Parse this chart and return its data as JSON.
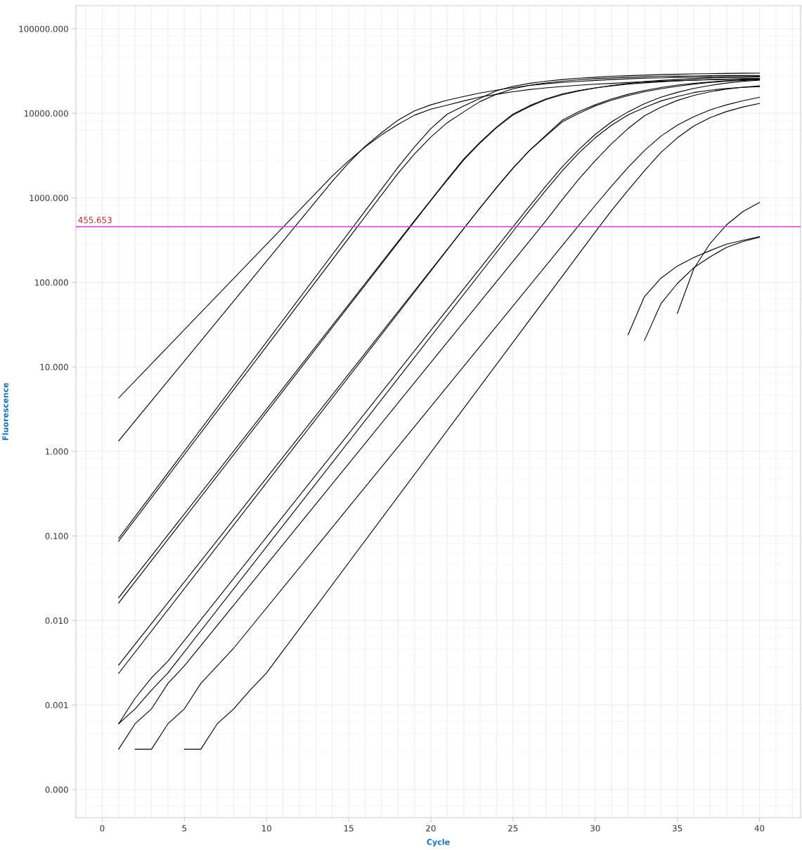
{
  "chart_data": {
    "type": "line",
    "xlabel": "Cycle",
    "ylabel": "Fluorescence",
    "log": "y",
    "grid": true,
    "line_style": "solid",
    "xlim": [
      -1.6,
      42.5
    ],
    "ylim": [
      4.65e-05,
      188000
    ],
    "xticks": [
      0,
      5,
      10,
      15,
      20,
      25,
      30,
      35,
      40
    ],
    "yticks": [
      {
        "value": 0.0001,
        "label": "0.000"
      },
      {
        "value": 0.001,
        "label": "0.001"
      },
      {
        "value": 0.01,
        "label": "0.010"
      },
      {
        "value": 0.1,
        "label": "0.100"
      },
      {
        "value": 1,
        "label": "1.000"
      },
      {
        "value": 10,
        "label": "10.000"
      },
      {
        "value": 100,
        "label": "100.000"
      },
      {
        "value": 1000,
        "label": "1000.000"
      },
      {
        "value": 10000,
        "label": "10000.000"
      },
      {
        "value": 100000,
        "label": "100000.000"
      }
    ],
    "ref_lines": [
      {
        "axis": "y",
        "value": 455.653,
        "label": "455.653",
        "color": "#cc44cc"
      }
    ],
    "series": [
      {
        "color": "#000000",
        "x": [
          1,
          14,
          15,
          16,
          17,
          18,
          19,
          20,
          21,
          22,
          23,
          24,
          25,
          26,
          27,
          28,
          29,
          30,
          31,
          32,
          33,
          34,
          35,
          36,
          37,
          38,
          39,
          40
        ],
        "values": [
          4.29,
          1810,
          2750,
          4000,
          5560,
          7400,
          9500,
          11200,
          12500,
          14000,
          15600,
          16800,
          18000,
          19100,
          20000,
          20800,
          21500,
          22100,
          22600,
          23200,
          23600,
          24000,
          24300,
          24700,
          24900,
          25200,
          25400,
          25500
        ]
      },
      {
        "color": "#000000",
        "x": [
          1,
          14,
          15,
          16,
          17,
          18,
          19,
          20,
          21,
          22,
          23,
          24,
          25,
          26,
          27,
          28,
          29,
          30,
          31,
          32,
          33,
          34,
          35,
          36,
          37,
          38,
          39,
          40
        ],
        "values": [
          1.33,
          1570,
          2600,
          4070,
          5900,
          8300,
          10700,
          12600,
          14300,
          15800,
          17400,
          18800,
          20200,
          21400,
          22400,
          23200,
          23900,
          24500,
          25100,
          25600,
          26000,
          26300,
          26600,
          26800,
          27000,
          27100,
          27200,
          27400
        ]
      },
      {
        "color": "#000000",
        "x": [
          1,
          18,
          19,
          20,
          21,
          22,
          23,
          24,
          25,
          26,
          27,
          28,
          29,
          30,
          31,
          32,
          33,
          34,
          35,
          36,
          37,
          38,
          39,
          40
        ],
        "values": [
          0.0935,
          2300,
          4000,
          6600,
          9800,
          12200,
          15100,
          18500,
          20900,
          22600,
          24000,
          25100,
          26000,
          26700,
          27400,
          27900,
          28300,
          28700,
          29000,
          29300,
          29500,
          29700,
          29800,
          29900
        ]
      },
      {
        "color": "#000000",
        "x": [
          1,
          18,
          19,
          20,
          21,
          22,
          23,
          24,
          25,
          26,
          27,
          28,
          29,
          30,
          31,
          32,
          33,
          34,
          35,
          36,
          37,
          38,
          39,
          40
        ],
        "values": [
          0.087,
          1950,
          3300,
          5250,
          7760,
          10400,
          13800,
          16800,
          19500,
          21400,
          22900,
          24000,
          24900,
          25700,
          26200,
          26700,
          27000,
          27400,
          27500,
          27700,
          27900,
          28000,
          28000,
          28100
        ]
      },
      {
        "color": "#000000",
        "x": [
          1,
          19,
          20,
          21,
          22,
          23,
          24,
          25,
          26,
          27,
          28,
          29,
          30,
          31,
          32,
          33,
          34,
          35,
          36,
          37,
          38,
          39,
          40
        ],
        "values": [
          0.0186,
          537,
          940,
          1660,
          2880,
          4570,
          6890,
          9800,
          12300,
          14800,
          17000,
          18600,
          20000,
          21100,
          22100,
          22900,
          23600,
          24200,
          24700,
          25100,
          25400,
          25700,
          25900
        ]
      },
      {
        "color": "#000000",
        "x": [
          1,
          19,
          20,
          21,
          22,
          23,
          24,
          25,
          26,
          27,
          28,
          29,
          30,
          31,
          32,
          33,
          34,
          35,
          36,
          37,
          38,
          39,
          40
        ],
        "values": [
          0.0161,
          525,
          930,
          1620,
          2800,
          4470,
          6760,
          9550,
          12000,
          14500,
          16600,
          18400,
          19900,
          21400,
          22600,
          23700,
          24500,
          25100,
          25700,
          26200,
          26500,
          26700,
          26900
        ]
      },
      {
        "color": "#000000",
        "x": [
          1,
          22,
          23,
          24,
          25,
          26,
          27,
          28,
          29,
          30,
          31,
          32,
          33,
          34,
          35,
          36,
          37,
          38,
          39,
          40
        ],
        "values": [
          0.00297,
          434,
          760,
          1320,
          2240,
          3630,
          5500,
          8300,
          10500,
          12600,
          14800,
          16800,
          18600,
          20200,
          21600,
          22600,
          23500,
          24300,
          24900,
          25300
        ]
      },
      {
        "color": "#000000",
        "x": [
          1,
          22,
          23,
          24,
          25,
          26,
          27,
          28,
          29,
          30,
          31,
          32,
          33,
          34,
          35,
          36,
          37,
          38,
          39,
          40
        ],
        "values": [
          0.00237,
          432,
          767,
          1330,
          2260,
          3630,
          5370,
          7940,
          10000,
          12200,
          14300,
          16200,
          18000,
          19500,
          20900,
          22100,
          23200,
          24000,
          24500,
          25000
        ]
      },
      {
        "color": "#000000",
        "x": [
          1,
          2,
          3,
          4,
          25,
          26,
          27,
          28,
          29,
          30,
          31,
          32,
          33,
          34,
          35,
          36,
          37,
          38,
          39,
          40
        ],
        "values": [
          0.0006,
          0.0012,
          0.0021,
          0.0033,
          455,
          794,
          1380,
          2340,
          3720,
          5620,
          7940,
          10400,
          13000,
          15500,
          17700,
          19700,
          21400,
          22800,
          23900,
          24700
        ]
      },
      {
        "color": "#000000",
        "x": [
          1,
          2,
          3,
          4,
          25,
          26,
          27,
          28,
          29,
          30,
          31,
          32,
          33,
          34,
          35,
          36,
          37,
          38,
          39,
          40
        ],
        "values": [
          0.0006,
          0.0009,
          0.0015,
          0.0024,
          402,
          708,
          1230,
          2090,
          3390,
          5130,
          7240,
          9550,
          11700,
          14000,
          15800,
          17600,
          18800,
          19700,
          20300,
          20700
        ]
      },
      {
        "color": "#000000",
        "x": [
          1,
          2,
          3,
          4,
          5,
          26,
          27,
          28,
          29,
          30,
          31,
          32,
          33,
          34,
          35,
          36,
          37,
          38,
          39,
          40
        ],
        "values": [
          0.0003,
          0.0006,
          0.0009,
          0.0018,
          0.0029,
          308,
          535,
          955,
          1660,
          2750,
          4370,
          6610,
          9330,
          11800,
          14200,
          16300,
          18000,
          19400,
          20400,
          21100
        ]
      },
      {
        "color": "#000000",
        "x": [
          2,
          3,
          4,
          5,
          6,
          7,
          8,
          29,
          30,
          31,
          32,
          33,
          34,
          35,
          36,
          37,
          38,
          39,
          40
        ],
        "values": [
          0.0003,
          0.0003,
          0.0006,
          0.0009,
          0.0018,
          0.0029,
          0.0047,
          472,
          813,
          1380,
          2290,
          3630,
          5370,
          7240,
          9120,
          11000,
          12600,
          14100,
          15500
        ]
      },
      {
        "color": "#000000",
        "x": [
          5,
          6,
          7,
          8,
          9,
          10,
          30,
          31,
          32,
          33,
          34,
          35,
          36,
          37,
          38,
          39,
          40
        ],
        "values": [
          0.0003,
          0.0003,
          0.0006,
          0.0009,
          0.0015,
          0.0024,
          394,
          710,
          1230,
          2090,
          3440,
          5130,
          7080,
          8900,
          10500,
          11900,
          13100
        ]
      },
      {
        "color": "#000000",
        "x": [
          35,
          36,
          37,
          38,
          39,
          40
        ],
        "values": [
          43,
          145,
          290,
          480,
          690,
          880
        ]
      },
      {
        "color": "#000000",
        "x": [
          32,
          33,
          34,
          35,
          36,
          37,
          38,
          39,
          40
        ],
        "values": [
          24,
          68,
          112,
          156,
          197,
          238,
          283,
          315,
          347
        ]
      },
      {
        "color": "#000000",
        "x": [
          33,
          34,
          35,
          36,
          37,
          38,
          39,
          40
        ],
        "values": [
          20.6,
          56,
          97,
          149,
          201,
          260,
          305,
          343
        ]
      }
    ]
  }
}
